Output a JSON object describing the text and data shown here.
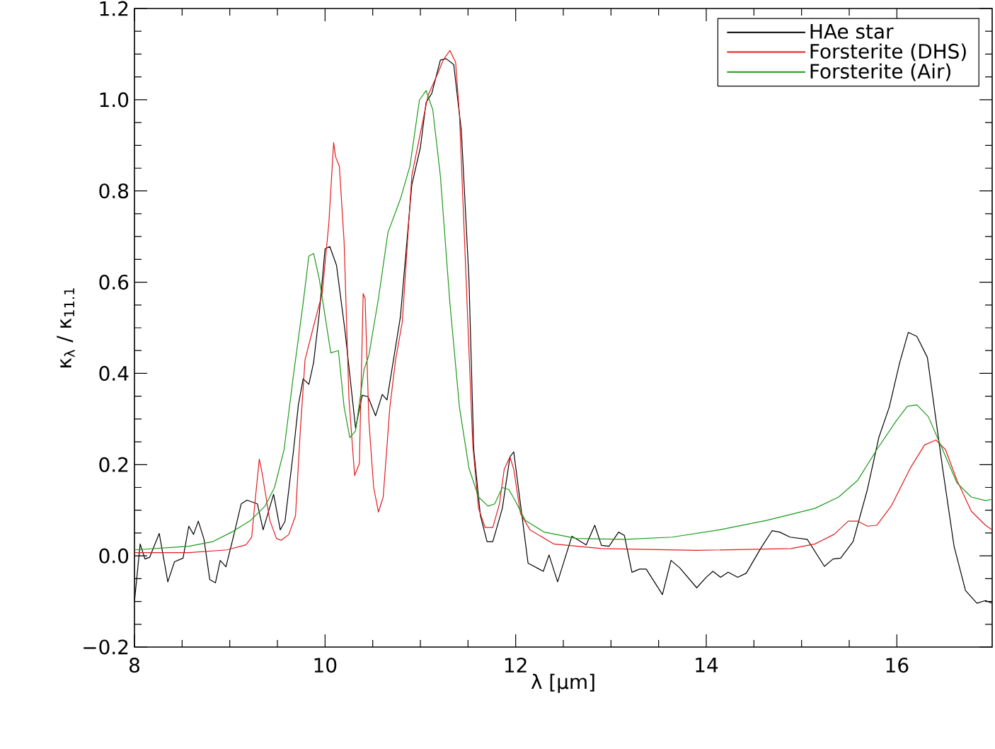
{
  "chart_data": {
    "type": "line",
    "xlabel": "λ [μm]",
    "ylabel": "κ$_{λ}$ / κ$_{11.1}$",
    "xlim": [
      8,
      17
    ],
    "xticks": [
      8,
      10,
      12,
      14,
      16
    ],
    "ylim": [
      -0.2,
      1.2
    ],
    "yticks": [
      {
        "value": -0.2,
        "label": "−0.2"
      },
      {
        "value": 0,
        "label": "0.0"
      },
      {
        "value": 0.2,
        "label": "0.2"
      },
      {
        "value": 0.4,
        "label": "0.4"
      },
      {
        "value": 0.6,
        "label": "0.6"
      },
      {
        "value": 0.8,
        "label": "0.8"
      },
      {
        "value": 1.0,
        "label": "1.0"
      },
      {
        "value": 1.2,
        "label": "1.2"
      }
    ],
    "legend": "top right",
    "grid": false,
    "marker": "none",
    "line_style": "solid",
    "series": [
      {
        "name": "HAe star",
        "color": "#000000",
        "x": [
          8.0,
          8.06,
          8.11,
          8.16,
          8.26,
          8.35,
          8.42,
          8.51,
          8.57,
          8.62,
          8.67,
          8.73,
          8.79,
          8.85,
          8.9,
          8.96,
          9.05,
          9.12,
          9.18,
          9.29,
          9.35,
          9.46,
          9.53,
          9.58,
          9.67,
          9.72,
          9.77,
          9.83,
          9.88,
          9.94,
          10.0,
          10.05,
          10.12,
          10.21,
          10.32,
          10.39,
          10.45,
          10.53,
          10.6,
          10.65,
          10.79,
          10.91,
          11.0,
          11.06,
          11.12,
          11.21,
          11.27,
          11.35,
          11.43,
          11.51,
          11.56,
          11.63,
          11.7,
          11.76,
          11.86,
          11.94,
          11.98,
          12.13,
          12.29,
          12.35,
          12.44,
          12.59,
          12.74,
          12.83,
          12.9,
          12.98,
          13.08,
          13.14,
          13.22,
          13.3,
          13.37,
          13.54,
          13.63,
          13.72,
          13.9,
          14.0,
          14.07,
          14.15,
          14.23,
          14.33,
          14.42,
          14.57,
          14.69,
          14.77,
          14.88,
          15.06,
          15.24,
          15.33,
          15.41,
          15.54,
          15.69,
          15.81,
          15.92,
          16.03,
          16.12,
          16.21,
          16.32,
          16.48,
          16.6,
          16.72,
          16.84,
          16.93,
          17.0
        ],
        "values": [
          -0.1,
          0.026,
          -0.007,
          -0.003,
          0.049,
          -0.057,
          -0.013,
          -0.005,
          0.065,
          0.047,
          0.076,
          0.036,
          -0.052,
          -0.059,
          -0.01,
          -0.024,
          0.052,
          0.114,
          0.122,
          0.114,
          0.057,
          0.135,
          0.057,
          0.076,
          0.233,
          0.331,
          0.388,
          0.376,
          0.424,
          0.533,
          0.673,
          0.678,
          0.637,
          0.492,
          0.28,
          0.352,
          0.349,
          0.307,
          0.354,
          0.342,
          0.523,
          0.813,
          0.895,
          0.994,
          1.014,
          1.087,
          1.09,
          1.077,
          0.932,
          0.606,
          0.233,
          0.088,
          0.031,
          0.031,
          0.104,
          0.217,
          0.228,
          -0.016,
          -0.034,
          0.002,
          -0.057,
          0.043,
          0.024,
          0.067,
          0.023,
          0.021,
          0.052,
          0.045,
          -0.036,
          -0.029,
          -0.029,
          -0.085,
          -0.01,
          -0.026,
          -0.07,
          -0.047,
          -0.034,
          -0.047,
          -0.036,
          -0.047,
          -0.038,
          0.016,
          0.055,
          0.052,
          0.041,
          0.036,
          -0.023,
          -0.007,
          -0.005,
          0.031,
          0.145,
          0.259,
          0.326,
          0.424,
          0.49,
          0.481,
          0.435,
          0.192,
          0.021,
          -0.076,
          -0.104,
          -0.098,
          -0.104
        ]
      },
      {
        "name": "Forsterite (DHS)",
        "color": "#e41a1c",
        "x": [
          8.0,
          8.57,
          8.97,
          9.17,
          9.23,
          9.27,
          9.31,
          9.34,
          9.42,
          9.49,
          9.54,
          9.62,
          9.69,
          9.74,
          9.79,
          9.89,
          9.97,
          10.04,
          10.09,
          10.11,
          10.15,
          10.2,
          10.25,
          10.31,
          10.36,
          10.4,
          10.42,
          10.46,
          10.51,
          10.56,
          10.61,
          10.68,
          10.74,
          10.81,
          10.91,
          11.01,
          11.08,
          11.18,
          11.24,
          11.31,
          11.37,
          11.41,
          11.48,
          11.55,
          11.61,
          11.68,
          11.76,
          11.83,
          11.88,
          11.94,
          11.98,
          12.05,
          12.15,
          12.4,
          12.9,
          13.9,
          14.89,
          15.14,
          15.34,
          15.49,
          15.59,
          15.69,
          15.79,
          15.94,
          16.14,
          16.29,
          16.41,
          16.51,
          16.63,
          16.78,
          16.93,
          17.0
        ],
        "values": [
          0.007,
          0.007,
          0.013,
          0.024,
          0.041,
          0.129,
          0.212,
          0.181,
          0.078,
          0.038,
          0.034,
          0.047,
          0.088,
          0.274,
          0.43,
          0.512,
          0.575,
          0.73,
          0.906,
          0.875,
          0.854,
          0.688,
          0.347,
          0.176,
          0.202,
          0.575,
          0.564,
          0.295,
          0.15,
          0.096,
          0.129,
          0.326,
          0.43,
          0.512,
          0.833,
          0.937,
          1.009,
          1.056,
          1.087,
          1.108,
          1.082,
          0.968,
          0.606,
          0.243,
          0.104,
          0.062,
          0.062,
          0.114,
          0.19,
          0.217,
          0.19,
          0.093,
          0.057,
          0.026,
          0.016,
          0.012,
          0.016,
          0.026,
          0.047,
          0.076,
          0.076,
          0.065,
          0.067,
          0.109,
          0.192,
          0.243,
          0.254,
          0.233,
          0.166,
          0.098,
          0.067,
          0.057
        ]
      },
      {
        "name": "Forsterite (Air)",
        "color": "#1a9a1a",
        "x": [
          8.0,
          8.57,
          8.82,
          9.02,
          9.22,
          9.37,
          9.47,
          9.57,
          9.67,
          9.77,
          9.83,
          9.88,
          9.94,
          10.06,
          10.14,
          10.2,
          10.26,
          10.32,
          10.41,
          10.46,
          10.56,
          10.66,
          10.79,
          10.89,
          10.99,
          11.06,
          11.13,
          11.21,
          11.31,
          11.41,
          11.51,
          11.61,
          11.71,
          11.78,
          11.86,
          11.93,
          12.0,
          12.1,
          12.3,
          12.64,
          13.14,
          13.64,
          14.14,
          14.64,
          15.14,
          15.39,
          15.59,
          15.79,
          15.99,
          16.11,
          16.21,
          16.33,
          16.48,
          16.63,
          16.78,
          16.93,
          17.0
        ],
        "values": [
          0.013,
          0.021,
          0.031,
          0.052,
          0.078,
          0.109,
          0.15,
          0.233,
          0.399,
          0.554,
          0.657,
          0.663,
          0.606,
          0.445,
          0.45,
          0.326,
          0.259,
          0.274,
          0.409,
          0.44,
          0.564,
          0.709,
          0.782,
          0.854,
          0.999,
          1.02,
          0.978,
          0.833,
          0.554,
          0.326,
          0.192,
          0.129,
          0.109,
          0.114,
          0.15,
          0.145,
          0.119,
          0.078,
          0.052,
          0.038,
          0.036,
          0.041,
          0.057,
          0.078,
          0.104,
          0.129,
          0.166,
          0.233,
          0.295,
          0.328,
          0.331,
          0.305,
          0.233,
          0.16,
          0.129,
          0.121,
          0.124
        ]
      }
    ]
  }
}
